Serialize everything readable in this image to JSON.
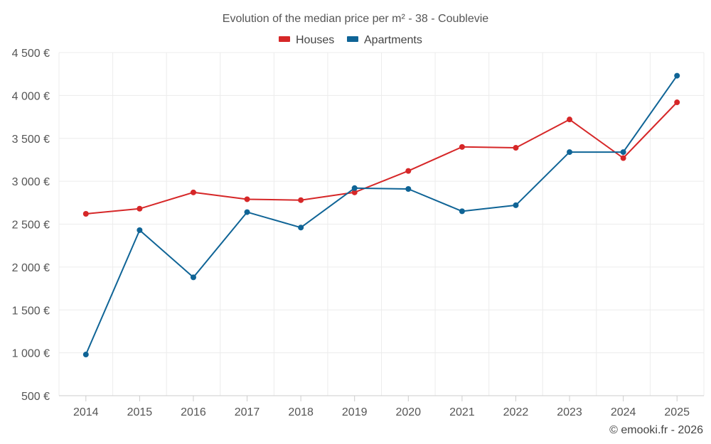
{
  "chart_data": {
    "type": "line",
    "title": "Evolution of the median price per m² - 38 - Coublevie",
    "categories": [
      "2014",
      "2015",
      "2016",
      "2017",
      "2018",
      "2019",
      "2020",
      "2021",
      "2022",
      "2023",
      "2024",
      "2025"
    ],
    "series": [
      {
        "name": "Houses",
        "color": "#d62728",
        "values": [
          2620,
          2680,
          2870,
          2790,
          2780,
          2870,
          3120,
          3400,
          3390,
          3720,
          3270,
          3920
        ]
      },
      {
        "name": "Apartments",
        "color": "#0f6496",
        "values": [
          980,
          2430,
          1880,
          2640,
          2460,
          2920,
          2910,
          2650,
          2720,
          3340,
          3340,
          4230
        ]
      }
    ],
    "ylim": [
      500,
      4500
    ],
    "yticks": [
      500,
      1000,
      1500,
      2000,
      2500,
      3000,
      3500,
      4000,
      4500
    ],
    "ytick_labels": [
      "500 €",
      "1 000 €",
      "1 500 €",
      "2 000 €",
      "2 500 €",
      "3 000 €",
      "3 500 €",
      "4 000 €",
      "4 500 €"
    ],
    "legend_position": "top-center",
    "grid": true
  },
  "credit": "© emooki.fr - 2026"
}
